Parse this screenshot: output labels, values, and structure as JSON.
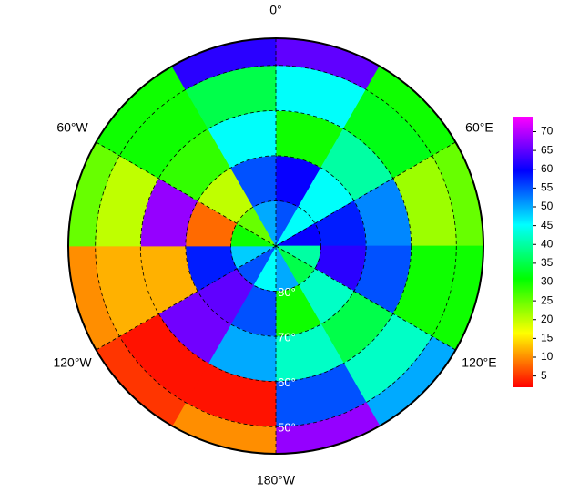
{
  "map": {
    "type": "polar-field",
    "lon_ticks": [
      {
        "value": 0,
        "label": "0°"
      },
      {
        "value": 60,
        "label": "60°E"
      },
      {
        "value": 120,
        "label": "120°E"
      },
      {
        "value": 180,
        "label": "180°W"
      },
      {
        "value": 240,
        "label": "120°W"
      },
      {
        "value": 300,
        "label": "60°W"
      }
    ],
    "lat_ticks": [
      {
        "value": 80,
        "label": "80°"
      },
      {
        "value": 70,
        "label": "70°"
      },
      {
        "value": 60,
        "label": "60°"
      },
      {
        "value": 50,
        "label": "50°"
      }
    ],
    "lat_edges": [
      90,
      80,
      70,
      60,
      50,
      44
    ],
    "lon_edges": [
      0,
      30,
      60,
      90,
      120,
      150,
      180,
      210,
      240,
      270,
      300,
      330,
      360
    ],
    "values": [
      [
        55,
        45,
        60,
        40,
        35,
        50,
        45,
        55,
        48,
        30,
        25,
        50
      ],
      [
        60,
        45,
        58,
        62,
        42,
        30,
        55,
        65,
        58,
        8,
        20,
        55
      ],
      [
        30,
        40,
        52,
        55,
        35,
        42,
        50,
        66,
        12,
        68,
        28,
        45
      ],
      [
        45,
        32,
        22,
        30,
        42,
        55,
        3,
        3,
        12,
        20,
        30,
        35
      ],
      [
        65,
        30,
        25,
        30,
        50,
        68,
        10,
        5,
        10,
        25,
        30,
        62
      ]
    ],
    "color_range": [
      2,
      74
    ],
    "colorbar_ticks": [
      5,
      10,
      15,
      20,
      25,
      30,
      35,
      40,
      45,
      50,
      55,
      60,
      65,
      70
    ]
  }
}
